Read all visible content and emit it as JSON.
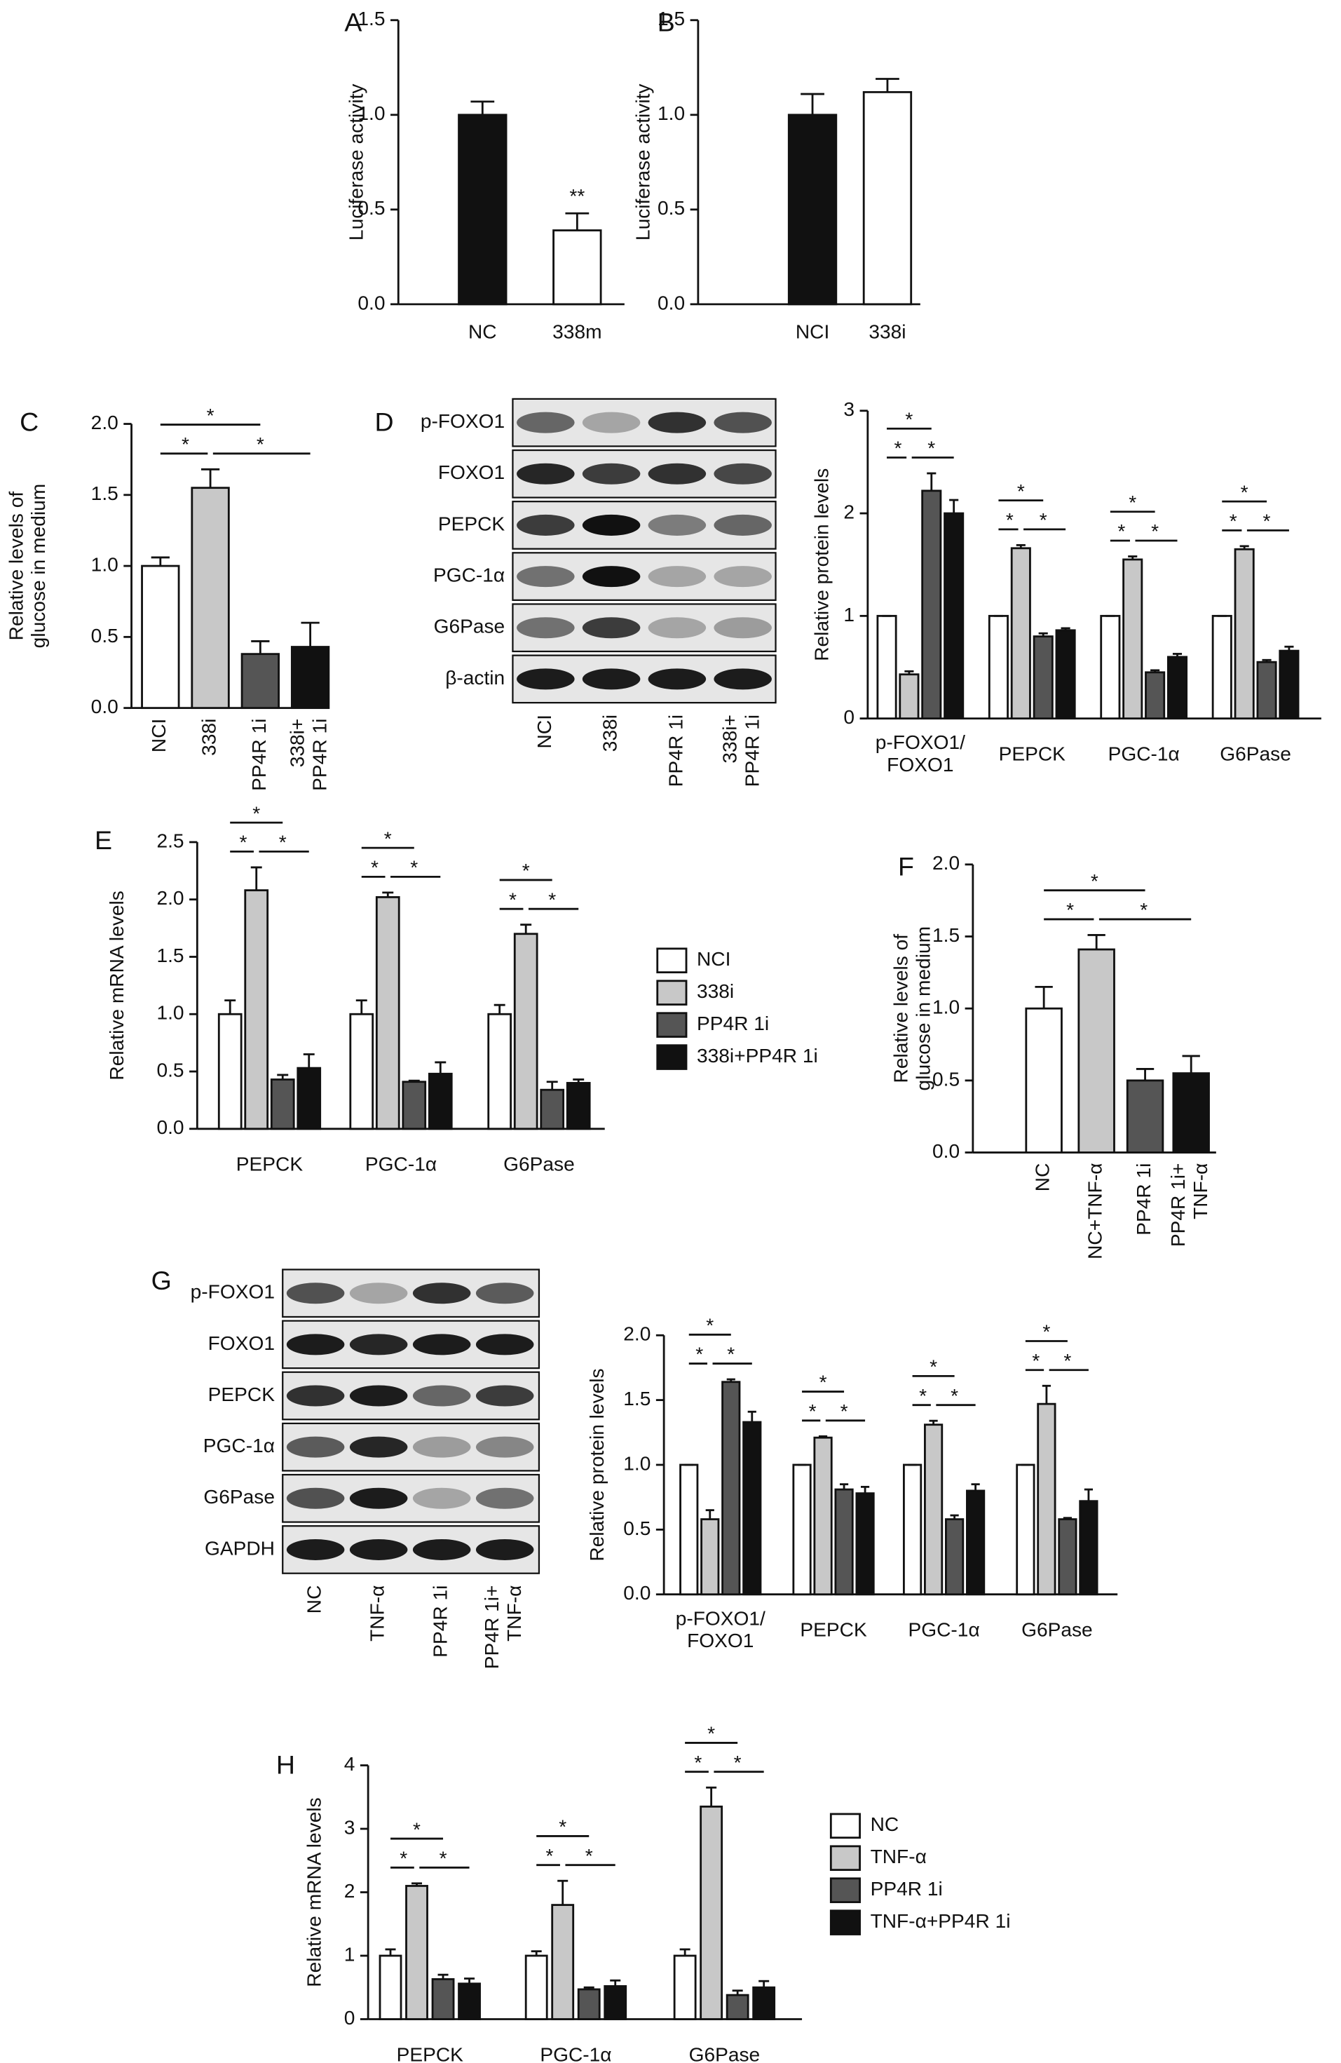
{
  "chart_data": [
    {
      "type": "bar",
      "panel": "A",
      "ylabel": "Luciferase activity",
      "categories": [
        "NC",
        "338m"
      ],
      "values": [
        1.0,
        0.39
      ],
      "errors": [
        0.07,
        0.09
      ],
      "colors": [
        "#111111",
        "#ffffff"
      ],
      "ylim": [
        0,
        1.5
      ],
      "yticks": [
        {
          "value": 0,
          "label": "0.0"
        },
        {
          "value": 0.5,
          "label": "0.5"
        },
        {
          "value": 1,
          "label": "1.0"
        },
        {
          "value": 1.5,
          "label": "1.5"
        }
      ],
      "annotations": [
        "**"
      ]
    },
    {
      "type": "bar",
      "panel": "B",
      "ylabel": "Luciferase activity",
      "categories": [
        "NCI",
        "338i"
      ],
      "values": [
        1.0,
        1.12
      ],
      "errors": [
        0.11,
        0.07
      ],
      "colors": [
        "#111111",
        "#ffffff"
      ],
      "ylim": [
        0,
        1.5
      ],
      "yticks": [
        {
          "value": 0,
          "label": "0.0"
        },
        {
          "value": 0.5,
          "label": "0.5"
        },
        {
          "value": 1,
          "label": "1.0"
        },
        {
          "value": 1.5,
          "label": "1.5"
        }
      ]
    },
    {
      "type": "bar",
      "panel": "C",
      "ylabel": "Relative levels of\nglucose in medium",
      "categories": [
        "NCI",
        "338i",
        "PP4R 1i",
        "338i+\nPP4R 1i"
      ],
      "values": [
        1.0,
        1.55,
        0.38,
        0.43
      ],
      "errors": [
        0.06,
        0.13,
        0.09,
        0.17
      ],
      "colors": [
        "#ffffff",
        "#c8c8c8",
        "#555555",
        "#111111"
      ],
      "ylim": [
        0,
        2
      ],
      "yticks": [
        {
          "value": 0,
          "label": "0.0"
        },
        {
          "value": 0.5,
          "label": "0.5"
        },
        {
          "value": 1,
          "label": "1.0"
        },
        {
          "value": 1.5,
          "label": "1.5"
        },
        {
          "value": 2,
          "label": "2.0"
        }
      ],
      "annotations": [
        "*",
        "*",
        "*"
      ]
    },
    {
      "type": "grouped-bar",
      "panel": "D",
      "ylabel": "Relative protein levels",
      "categories": [
        "p-FOXO1/\nFOXO1",
        "PEPCK",
        "PGC-1α",
        "G6Pase"
      ],
      "series": [
        {
          "color": "#ffffff",
          "values": [
            1.0,
            1.0,
            1.0,
            1.0
          ],
          "errors": [
            0,
            0,
            0,
            0
          ]
        },
        {
          "color": "#c8c8c8",
          "values": [
            0.43,
            1.66,
            1.55,
            1.65
          ],
          "errors": [
            0.03,
            0.03,
            0.03,
            0.03
          ]
        },
        {
          "color": "#555555",
          "values": [
            2.22,
            0.8,
            0.45,
            0.55
          ],
          "errors": [
            0.17,
            0.03,
            0.02,
            0.02
          ]
        },
        {
          "color": "#111111",
          "values": [
            2.0,
            0.86,
            0.6,
            0.66
          ],
          "errors": [
            0.13,
            0.02,
            0.03,
            0.04
          ]
        }
      ],
      "ylim": [
        0,
        3
      ],
      "yticks": [
        0,
        1,
        2,
        3
      ],
      "annotations": [
        "*",
        "*",
        "*",
        "*",
        "*",
        "*",
        "*",
        "*",
        "*",
        "*",
        "*",
        "*"
      ]
    },
    {
      "type": "grouped-bar",
      "panel": "E",
      "ylabel": "Relative mRNA levels",
      "categories": [
        "PEPCK",
        "PGC-1α",
        "G6Pase"
      ],
      "series": [
        {
          "name": "NCI",
          "color": "#ffffff",
          "values": [
            1.0,
            1.0,
            1.0
          ],
          "errors": [
            0.12,
            0.12,
            0.08
          ]
        },
        {
          "name": "338i",
          "color": "#c8c8c8",
          "values": [
            2.08,
            2.02,
            1.7
          ],
          "errors": [
            0.2,
            0.04,
            0.08
          ]
        },
        {
          "name": "PP4R 1i",
          "color": "#555555",
          "values": [
            0.43,
            0.41,
            0.34
          ],
          "errors": [
            0.04,
            0.01,
            0.07
          ]
        },
        {
          "name": "338i+PP4R 1i",
          "color": "#111111",
          "values": [
            0.53,
            0.48,
            0.4
          ],
          "errors": [
            0.12,
            0.1,
            0.03
          ]
        }
      ],
      "ylim": [
        0,
        2.5
      ],
      "yticks": [
        {
          "value": 0,
          "label": "0.0"
        },
        {
          "value": 0.5,
          "label": "0.5"
        },
        {
          "value": 1,
          "label": "1.0"
        },
        {
          "value": 1.5,
          "label": "1.5"
        },
        {
          "value": 2,
          "label": "2.0"
        },
        {
          "value": 2.5,
          "label": "2.5"
        }
      ],
      "annotations": [
        "*",
        "*",
        "*",
        "*",
        "*",
        "*",
        "*",
        "*",
        "*"
      ]
    },
    {
      "type": "bar",
      "panel": "F",
      "ylabel": "Relative levels of\nglucose in medium",
      "categories": [
        "NC",
        "NC+TNF-α",
        "PP4R 1i",
        "PP4R 1i+\nTNF-α"
      ],
      "values": [
        1.0,
        1.41,
        0.5,
        0.55
      ],
      "errors": [
        0.15,
        0.1,
        0.08,
        0.12
      ],
      "colors": [
        "#ffffff",
        "#c8c8c8",
        "#555555",
        "#111111"
      ],
      "ylim": [
        0,
        2
      ],
      "yticks": [
        {
          "value": 0,
          "label": "0.0"
        },
        {
          "value": 0.5,
          "label": "0.5"
        },
        {
          "value": 1,
          "label": "1.0"
        },
        {
          "value": 1.5,
          "label": "1.5"
        },
        {
          "value": 2,
          "label": "2.0"
        }
      ],
      "annotations": [
        "*",
        "*",
        "*"
      ]
    },
    {
      "type": "grouped-bar",
      "panel": "G",
      "ylabel": "Relative protein levels",
      "categories": [
        "p-FOXO1/\nFOXO1",
        "PEPCK",
        "PGC-1α",
        "G6Pase"
      ],
      "series": [
        {
          "color": "#ffffff",
          "values": [
            1.0,
            1.0,
            1.0,
            1.0
          ],
          "errors": [
            0,
            0,
            0,
            0
          ]
        },
        {
          "color": "#c8c8c8",
          "values": [
            0.58,
            1.21,
            1.31,
            1.47
          ],
          "errors": [
            0.07,
            0.01,
            0.03,
            0.14
          ]
        },
        {
          "color": "#555555",
          "values": [
            1.64,
            0.81,
            0.58,
            0.58
          ],
          "errors": [
            0.02,
            0.04,
            0.03,
            0.01
          ]
        },
        {
          "color": "#111111",
          "values": [
            1.33,
            0.78,
            0.8,
            0.72
          ],
          "errors": [
            0.08,
            0.05,
            0.05,
            0.09
          ]
        }
      ],
      "ylim": [
        0,
        2
      ],
      "yticks": [
        {
          "value": 0,
          "label": "0.0"
        },
        {
          "value": 0.5,
          "label": "0.5"
        },
        {
          "value": 1,
          "label": "1.0"
        },
        {
          "value": 1.5,
          "label": "1.5"
        },
        {
          "value": 2,
          "label": "2.0"
        }
      ],
      "annotations": [
        "*",
        "*",
        "*",
        "*",
        "*",
        "*",
        "*",
        "*",
        "*",
        "*",
        "*",
        "*"
      ]
    },
    {
      "type": "grouped-bar",
      "panel": "H",
      "ylabel": "Relative mRNA levels",
      "categories": [
        "PEPCK",
        "PGC-1α",
        "G6Pase"
      ],
      "series": [
        {
          "name": "NC",
          "color": "#ffffff",
          "values": [
            1.0,
            1.0,
            1.0
          ],
          "errors": [
            0.1,
            0.07,
            0.1
          ]
        },
        {
          "name": "TNF-α",
          "color": "#c8c8c8",
          "values": [
            2.1,
            1.8,
            3.35
          ],
          "errors": [
            0.04,
            0.38,
            0.3
          ]
        },
        {
          "name": "PP4R 1i",
          "color": "#555555",
          "values": [
            0.63,
            0.47,
            0.38
          ],
          "errors": [
            0.07,
            0.03,
            0.07
          ]
        },
        {
          "name": "TNF-α+PP4R 1i",
          "color": "#111111",
          "values": [
            0.56,
            0.52,
            0.5
          ],
          "errors": [
            0.08,
            0.09,
            0.1
          ]
        }
      ],
      "ylim": [
        0,
        4
      ],
      "yticks": [
        0,
        1,
        2,
        3,
        4
      ],
      "annotations": [
        "*",
        "*",
        "*",
        "*",
        "*",
        "*",
        "*",
        "*",
        "*"
      ]
    }
  ],
  "blots": [
    {
      "rows": [
        "p-FOXO1",
        "FOXO1",
        "PEPCK",
        "PGC-1α",
        "G6Pase",
        "β-actin"
      ],
      "lanes": [
        "NCI",
        "338i",
        "PP4R 1i",
        "338i+\nPP4R 1i"
      ]
    },
    {
      "rows": [
        "p-FOXO1",
        "FOXO1",
        "PEPCK",
        "PGC-1α",
        "G6Pase",
        "GAPDH"
      ],
      "lanes": [
        "NC",
        "TNF-α",
        "PP4R 1i",
        "PP4R 1i+\nTNF-α"
      ]
    }
  ]
}
